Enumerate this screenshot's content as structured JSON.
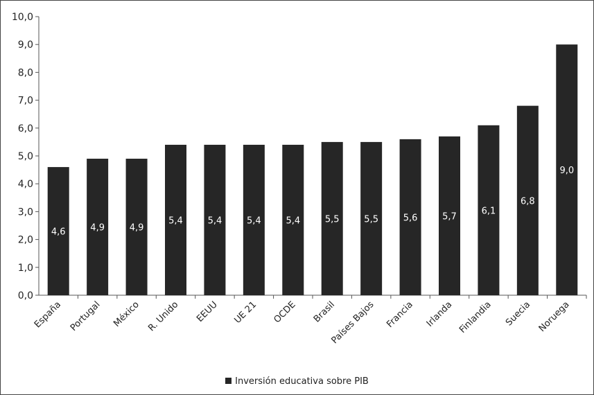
{
  "chart_data": {
    "type": "bar",
    "title": "",
    "xlabel": "",
    "ylabel": "",
    "ylim": [
      0,
      10
    ],
    "yticks": [
      "0,0",
      "1,0",
      "2,0",
      "3,0",
      "4,0",
      "5,0",
      "6,0",
      "7,0",
      "8,0",
      "9,0",
      "10,0"
    ],
    "categories": [
      "España",
      "Portugal",
      "México",
      "R. Unido",
      "EEUU",
      "UE 21",
      "OCDE",
      "Brasil",
      "Países Bajos",
      "Francia",
      "Irlanda",
      "Finlandia",
      "Suecia",
      "Noruega"
    ],
    "series": [
      {
        "name": "Inversión educativa sobre PIB",
        "values": [
          4.6,
          4.9,
          4.9,
          5.4,
          5.4,
          5.4,
          5.4,
          5.5,
          5.5,
          5.6,
          5.7,
          6.1,
          6.8,
          9.0
        ],
        "labels": [
          "4,6",
          "4,9",
          "4,9",
          "5,4",
          "5,4",
          "5,4",
          "5,4",
          "5,5",
          "5,5",
          "5,6",
          "5,7",
          "6,1",
          "6,8",
          "9,0"
        ],
        "color": "#262626"
      }
    ],
    "grid": false,
    "legend_position": "bottom"
  }
}
